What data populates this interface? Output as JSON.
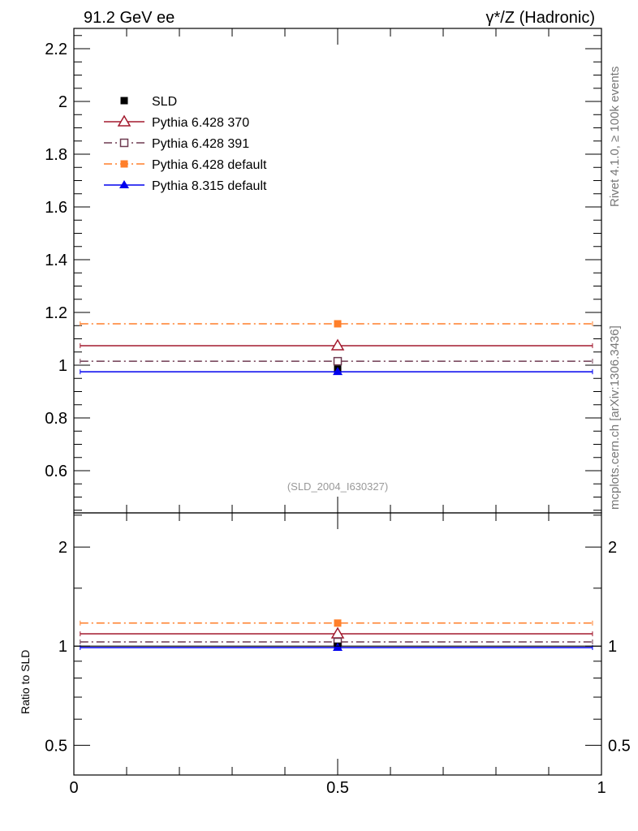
{
  "chart_data": {
    "type": "scatter",
    "title_left": "91.2 GeV ee",
    "title_right": "γ*/Z (Hadronic)",
    "side_label_top": "Rivet 4.1.0, ≥ 100k events",
    "side_label_bottom": "mcplots.cern.ch [arXiv:1306.3436]",
    "analysis_label": "(SLD_2004_I630327)",
    "xlim": [
      0,
      1
    ],
    "xticks": [
      "0",
      "0.5",
      "1"
    ],
    "main": {
      "ylim": [
        0.44,
        2.277
      ],
      "yticks": [
        "0.6",
        "0.8",
        "1",
        "1.2",
        "1.4",
        "1.6",
        "1.8",
        "2",
        "2.2"
      ]
    },
    "ratio": {
      "ylabel": "Ratio to SLD",
      "scale": "log",
      "ylim": [
        0.406,
        2.54
      ],
      "yticks": [
        "0.5",
        "1",
        "2"
      ]
    },
    "bin": {
      "xlow": 0.012,
      "xhigh": 0.983,
      "x": 0.5
    },
    "series": [
      {
        "name": "SLD",
        "color": "#000000",
        "marker": "square",
        "line": "none",
        "value": 0.985,
        "ratio": 1.0
      },
      {
        "name": "Pythia 6.428 370",
        "color": "#a31a2e",
        "marker": "open-triangle",
        "line": "solid",
        "value": 1.074,
        "ratio": 1.09
      },
      {
        "name": "Pythia 6.428 391",
        "color": "#6e3a50",
        "marker": "open-square",
        "line": "dashdot",
        "value": 1.015,
        "ratio": 1.03
      },
      {
        "name": "Pythia 6.428 default",
        "color": "#ff7f2a",
        "marker": "square",
        "line": "dashdot",
        "value": 1.157,
        "ratio": 1.175
      },
      {
        "name": "Pythia 8.315 default",
        "color": "#0000ee",
        "marker": "triangle",
        "line": "solid",
        "value": 0.975,
        "ratio": 0.99
      }
    ]
  }
}
